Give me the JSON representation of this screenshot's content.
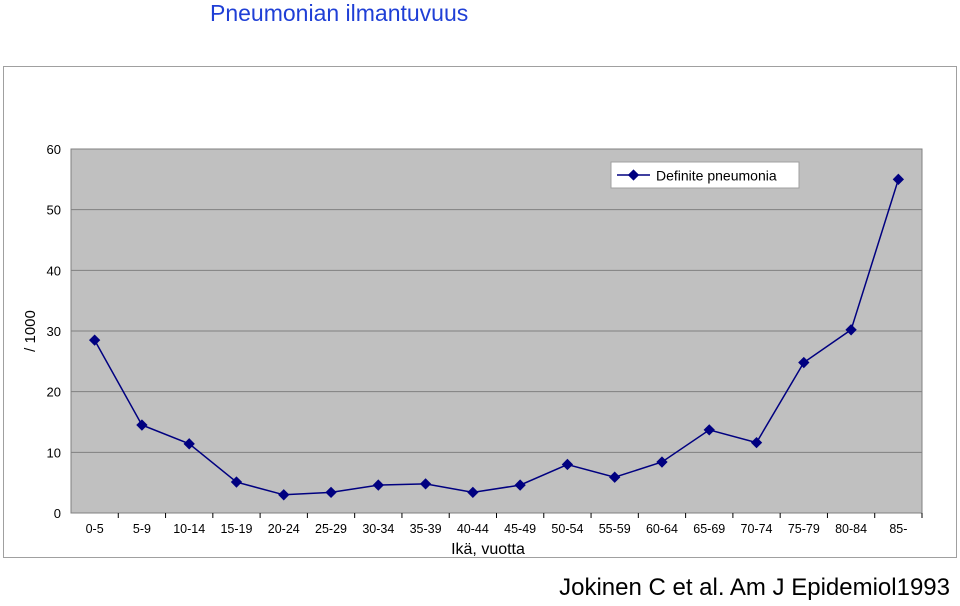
{
  "page": {
    "title": "Pneumonian ilmantuvuus",
    "citation": "Jokinen C et al. Am J Epidemiol1993"
  },
  "colors": {
    "title": "#1f3fd6",
    "plot_bg": "#c0c0c0",
    "series": "#000080",
    "grid": "#808080"
  },
  "chart_data": {
    "type": "line",
    "title": "",
    "xlabel": "Ikä, vuotta",
    "ylabel": "/ 1000",
    "ylim": [
      0,
      60
    ],
    "yticks": [
      0,
      10,
      20,
      30,
      40,
      50,
      60
    ],
    "grid": true,
    "legend_position": "top-right",
    "categories": [
      "0-5",
      "5-9",
      "10-14",
      "15-19",
      "20-24",
      "25-29",
      "30-34",
      "35-39",
      "40-44",
      "45-49",
      "50-54",
      "55-59",
      "60-64",
      "65-69",
      "70-74",
      "75-79",
      "80-84",
      "85-"
    ],
    "series": [
      {
        "name": "Definite pneumonia",
        "values": [
          28.5,
          14.5,
          11.4,
          5.1,
          3.0,
          3.4,
          4.6,
          4.8,
          3.4,
          4.6,
          8.0,
          5.9,
          8.4,
          13.7,
          11.6,
          24.8,
          30.2,
          55.0
        ]
      }
    ]
  }
}
